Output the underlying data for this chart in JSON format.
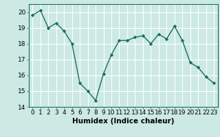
{
  "x": [
    0,
    1,
    2,
    3,
    4,
    5,
    6,
    7,
    8,
    9,
    10,
    11,
    12,
    13,
    14,
    15,
    16,
    17,
    18,
    19,
    20,
    21,
    22,
    23
  ],
  "y": [
    19.8,
    20.1,
    19.0,
    19.3,
    18.8,
    18.0,
    15.5,
    15.0,
    14.4,
    16.1,
    17.3,
    18.2,
    18.2,
    18.4,
    18.5,
    18.0,
    18.6,
    18.3,
    19.1,
    18.2,
    16.8,
    16.5,
    15.9,
    15.5
  ],
  "line_color": "#1a6b5e",
  "marker": "D",
  "markersize": 2.2,
  "linewidth": 1.0,
  "bg_color": "#cce9e4",
  "grid_color": "#ffffff",
  "xlabel": "Humidex (Indice chaleur)",
  "xlim": [
    -0.5,
    23.5
  ],
  "ylim": [
    14,
    20.5
  ],
  "yticks": [
    14,
    15,
    16,
    17,
    18,
    19,
    20
  ],
  "xticks": [
    0,
    1,
    2,
    3,
    4,
    5,
    6,
    7,
    8,
    9,
    10,
    11,
    12,
    13,
    14,
    15,
    16,
    17,
    18,
    19,
    20,
    21,
    22,
    23
  ],
  "xlabel_fontsize": 7.5,
  "tick_fontsize": 6.5
}
